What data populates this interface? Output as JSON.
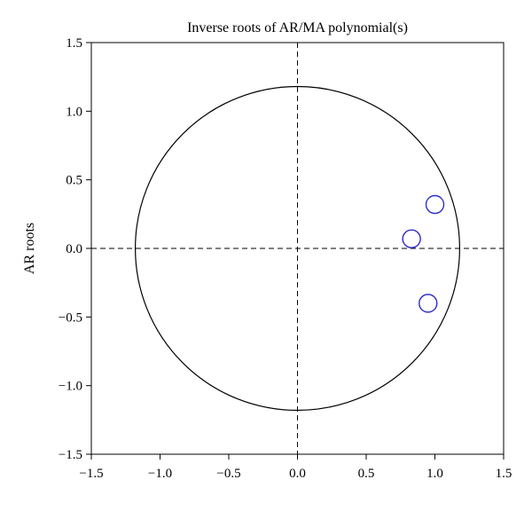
{
  "chart_data": {
    "type": "scatter",
    "title": "Inverse roots of AR/MA polynomial(s)",
    "xlabel": "",
    "ylabel": "AR roots",
    "xlim": [
      -1.5,
      1.5
    ],
    "ylim": [
      -1.5,
      1.5
    ],
    "xticks": [
      -1.5,
      -1.0,
      -0.5,
      0.0,
      0.5,
      1.0,
      1.5
    ],
    "xtick_labels": [
      "−1.5",
      "−1.0",
      "−0.5",
      "0.0",
      "0.5",
      "1.0",
      "1.5"
    ],
    "yticks": [
      1.5,
      1.0,
      0.5,
      0.0,
      -0.5,
      -1.0,
      -1.5
    ],
    "ytick_labels": [
      "1.5",
      "1.0",
      "0.5",
      "0.0",
      "−0.5",
      "−1.0",
      "−1.5"
    ],
    "unit_circle_radius": 1.18,
    "reference_lines": {
      "x": 0,
      "y": 0,
      "style": "dashed"
    },
    "grid": false,
    "marker_color": "#2b2bc8",
    "series": [
      {
        "points": [
          {
            "x": 1.0,
            "y": 0.32
          },
          {
            "x": 0.83,
            "y": 0.07
          },
          {
            "x": 0.95,
            "y": -0.4
          }
        ]
      }
    ]
  }
}
